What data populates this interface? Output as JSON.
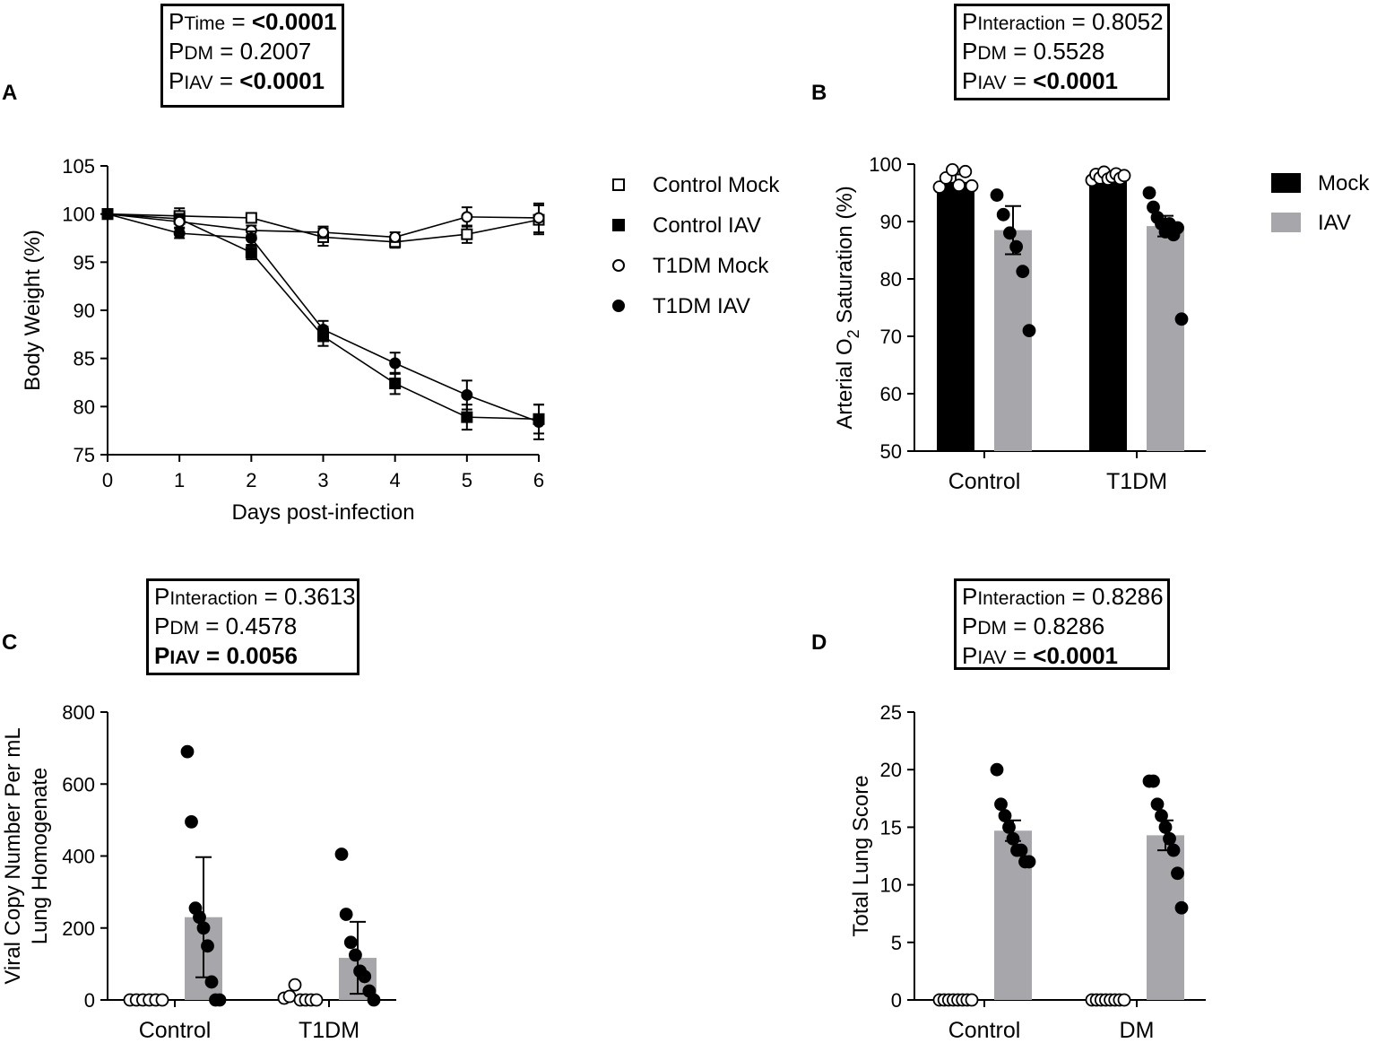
{
  "panel_letters": {
    "a": "A",
    "b": "B",
    "c": "C",
    "d": "D"
  },
  "stat_boxes": {
    "a": [
      {
        "p": "P",
        "sub": "Time",
        "eq": " = ",
        "val": "<0.0001",
        "val_bold": true,
        "all_bold": false
      },
      {
        "p": "P",
        "sub": "DM",
        "eq": " = ",
        "val": "0.2007",
        "val_bold": false,
        "all_bold": false
      },
      {
        "p": "P",
        "sub": "IAV",
        "eq": " = ",
        "val": "<0.0001",
        "val_bold": true,
        "all_bold": false
      }
    ],
    "b": [
      {
        "p": "P",
        "sub": "Interaction",
        "eq": " = ",
        "val": "0.8052",
        "val_bold": false,
        "all_bold": false
      },
      {
        "p": "P",
        "sub": "DM",
        "eq": " = ",
        "val": "0.5528",
        "val_bold": false,
        "all_bold": false
      },
      {
        "p": "P",
        "sub": "IAV",
        "eq": " = ",
        "val": "<0.0001",
        "val_bold": true,
        "all_bold": false
      }
    ],
    "c": [
      {
        "p": "P",
        "sub": "Interaction",
        "eq": " = ",
        "val": "0.3613",
        "val_bold": false,
        "all_bold": false
      },
      {
        "p": "P",
        "sub": "DM",
        "eq": " = ",
        "val": "0.4578",
        "val_bold": false,
        "all_bold": false
      },
      {
        "p": "P",
        "sub": "IAV",
        "eq": " = ",
        "val": "0.0056",
        "val_bold": true,
        "all_bold": true
      }
    ],
    "d": [
      {
        "p": "P",
        "sub": "Interaction",
        "eq": " = ",
        "val": "0.8286",
        "val_bold": false,
        "all_bold": false
      },
      {
        "p": "P",
        "sub": "DM",
        "eq": " = ",
        "val": "0.8286",
        "val_bold": false,
        "all_bold": false
      },
      {
        "p": "P",
        "sub": "IAV",
        "eq": " = ",
        "val": "<0.0001",
        "val_bold": true,
        "all_bold": false
      }
    ]
  },
  "colors": {
    "mock_bar": "#000000",
    "iav_bar": "#a6a6ab",
    "axis": "#000000"
  },
  "chart_data": [
    {
      "panel": "A",
      "type": "line",
      "xlabel": "Days post-infection",
      "ylabel": "Body Weight (%)",
      "xlim": [
        0,
        6
      ],
      "ylim": [
        75,
        105
      ],
      "xticks": [
        0,
        1,
        2,
        3,
        4,
        5,
        6
      ],
      "yticks": [
        75,
        80,
        85,
        90,
        95,
        100,
        105
      ],
      "x": [
        0,
        1,
        2,
        3,
        4,
        5,
        6
      ],
      "series": [
        {
          "name": "Control Mock",
          "marker": "square-open",
          "values": [
            100,
            99.8,
            99.6,
            97.6,
            97.1,
            97.9,
            99.4
          ],
          "err": [
            0,
            0.8,
            0.5,
            0.9,
            0.6,
            0.9,
            1.5
          ]
        },
        {
          "name": "Control IAV",
          "marker": "square-filled",
          "values": [
            100,
            99.5,
            96.0,
            87.3,
            82.4,
            78.9,
            78.7
          ],
          "err": [
            0,
            0.5,
            0.7,
            1.0,
            1.1,
            1.3,
            1.5
          ]
        },
        {
          "name": "T1DM Mock",
          "marker": "circle-open",
          "values": [
            100,
            99.2,
            98.3,
            98.1,
            97.6,
            99.7,
            99.6
          ],
          "err": [
            0,
            0.6,
            0.5,
            0.6,
            0.5,
            1.0,
            1.5
          ]
        },
        {
          "name": "T1DM IAV",
          "marker": "circle-filled",
          "values": [
            100,
            98.0,
            97.5,
            88.0,
            84.5,
            81.2,
            78.4
          ],
          "err": [
            0,
            0.5,
            0.7,
            0.9,
            1.1,
            1.5,
            1.8
          ]
        }
      ],
      "legend_position": "right"
    },
    {
      "panel": "B",
      "type": "bar",
      "ylabel_main": "Arterial O",
      "ylabel_sub": "2",
      "ylabel_rest": " Saturation (%)",
      "ylim": [
        50,
        100
      ],
      "yticks": [
        50,
        60,
        70,
        80,
        90,
        100
      ],
      "categories": [
        "Control",
        "T1DM"
      ],
      "series": [
        {
          "name": "Mock",
          "values": [
            96.9,
            97.6
          ],
          "err": [
            1.3,
            0.7
          ],
          "points": [
            [
              96.0,
              97.6,
              99.0,
              96.3,
              98.7,
              96.2
            ],
            [
              97.2,
              98.2,
              97.6,
              98.6,
              97.4,
              97.8,
              98.3,
              97.5,
              98.0
            ]
          ]
        },
        {
          "name": "IAV",
          "values": [
            88.5,
            89.2
          ],
          "err": [
            4.2,
            1.8
          ],
          "points": [
            [
              94.6,
              91.2,
              88.0,
              85.6,
              81.3,
              71.0
            ],
            [
              95.0,
              92.5,
              90.7,
              89.6,
              88.2,
              89.6,
              87.7,
              88.9,
              73.0
            ]
          ]
        }
      ],
      "legend_position": "right"
    },
    {
      "panel": "C",
      "type": "bar",
      "ylabel_line1": "Viral Copy Number Per mL",
      "ylabel_line2": "Lung Homogenate",
      "ylim": [
        0,
        800
      ],
      "yticks": [
        0,
        200,
        400,
        600,
        800
      ],
      "categories": [
        "Control",
        "T1DM"
      ],
      "series": [
        {
          "name": "Mock",
          "values": [
            0,
            0
          ],
          "err": [
            0,
            0
          ],
          "points": [
            [
              0,
              0,
              0,
              0,
              0,
              0
            ],
            [
              5,
              10,
              42,
              0,
              0,
              0,
              0
            ]
          ]
        },
        {
          "name": "IAV",
          "values": [
            230,
            117
          ],
          "err": [
            167,
            100
          ],
          "points": [
            [
              690,
              495,
              255,
              230,
              200,
              150,
              50,
              0,
              0
            ],
            [
              405,
              238,
              160,
              125,
              80,
              65,
              25,
              0
            ]
          ]
        }
      ]
    },
    {
      "panel": "D",
      "type": "bar",
      "ylabel": "Total Lung Score",
      "ylim": [
        0,
        25
      ],
      "yticks": [
        0,
        5,
        10,
        15,
        20,
        25
      ],
      "categories": [
        "Control",
        "DM"
      ],
      "series": [
        {
          "name": "Mock",
          "values": [
            0,
            0
          ],
          "err": [
            0,
            0
          ],
          "points": [
            [
              0,
              0,
              0,
              0,
              0,
              0,
              0,
              0
            ],
            [
              0,
              0,
              0,
              0,
              0,
              0,
              0,
              0
            ]
          ]
        },
        {
          "name": "IAV",
          "values": [
            14.7,
            14.3
          ],
          "err": [
            0.9,
            1.3
          ],
          "points": [
            [
              20,
              17,
              16,
              15,
              14,
              13,
              13,
              12,
              12
            ],
            [
              19,
              19,
              17,
              16,
              15,
              14,
              13,
              11,
              8
            ]
          ]
        }
      ]
    }
  ]
}
